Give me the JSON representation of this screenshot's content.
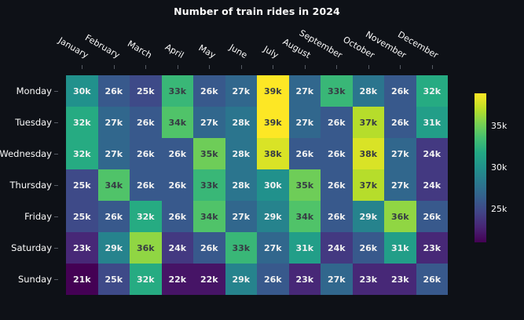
{
  "title": "Number of train rides in 2024",
  "chart_data": {
    "type": "heatmap",
    "title": "Number of train rides in 2024",
    "x_categories": [
      "January",
      "February",
      "March",
      "April",
      "May",
      "June",
      "July",
      "August",
      "September",
      "October",
      "November",
      "December"
    ],
    "y_categories": [
      "Monday",
      "Tuesday",
      "Wednesday",
      "Thursday",
      "Friday",
      "Saturday",
      "Sunday"
    ],
    "value_suffix": "k",
    "values_in_thousands": [
      [
        30,
        26,
        25,
        33,
        26,
        27,
        39,
        27,
        33,
        28,
        26,
        32
      ],
      [
        32,
        27,
        26,
        34,
        27,
        28,
        39,
        27,
        26,
        37,
        26,
        31
      ],
      [
        32,
        27,
        26,
        26,
        35,
        28,
        38,
        26,
        26,
        38,
        27,
        24
      ],
      [
        25,
        34,
        26,
        26,
        33,
        28,
        30,
        35,
        26,
        37,
        27,
        24
      ],
      [
        25,
        26,
        32,
        26,
        34,
        27,
        29,
        34,
        26,
        29,
        36,
        26
      ],
      [
        23,
        29,
        36,
        24,
        26,
        33,
        27,
        31,
        24,
        26,
        31,
        23
      ],
      [
        21,
        25,
        32,
        22,
        22,
        29,
        26,
        23,
        27,
        23,
        23,
        26
      ]
    ],
    "vmin": 21,
    "vmax": 39,
    "colorscale": "viridis",
    "colorscale_stops": [
      [
        0.0,
        "#440154"
      ],
      [
        0.1,
        "#482475"
      ],
      [
        0.2,
        "#414487"
      ],
      [
        0.3,
        "#355f8d"
      ],
      [
        0.4,
        "#2a788e"
      ],
      [
        0.5,
        "#21918c"
      ],
      [
        0.6,
        "#22a884"
      ],
      [
        0.7,
        "#44bf70"
      ],
      [
        0.8,
        "#7ad151"
      ],
      [
        0.9,
        "#bddf26"
      ],
      [
        1.0,
        "#fde725"
      ]
    ],
    "colorbar": {
      "position": "right",
      "tick_labels": [
        "35k",
        "30k",
        "25k"
      ],
      "tick_values": [
        35,
        30,
        25
      ]
    },
    "grid": "off",
    "colors": {
      "background": "#0e1117",
      "label_text": "#fafafa",
      "cell_text_light": "#f2f2f2",
      "cell_text_dark": "#373c44",
      "axis_tick": "#565b64"
    }
  }
}
